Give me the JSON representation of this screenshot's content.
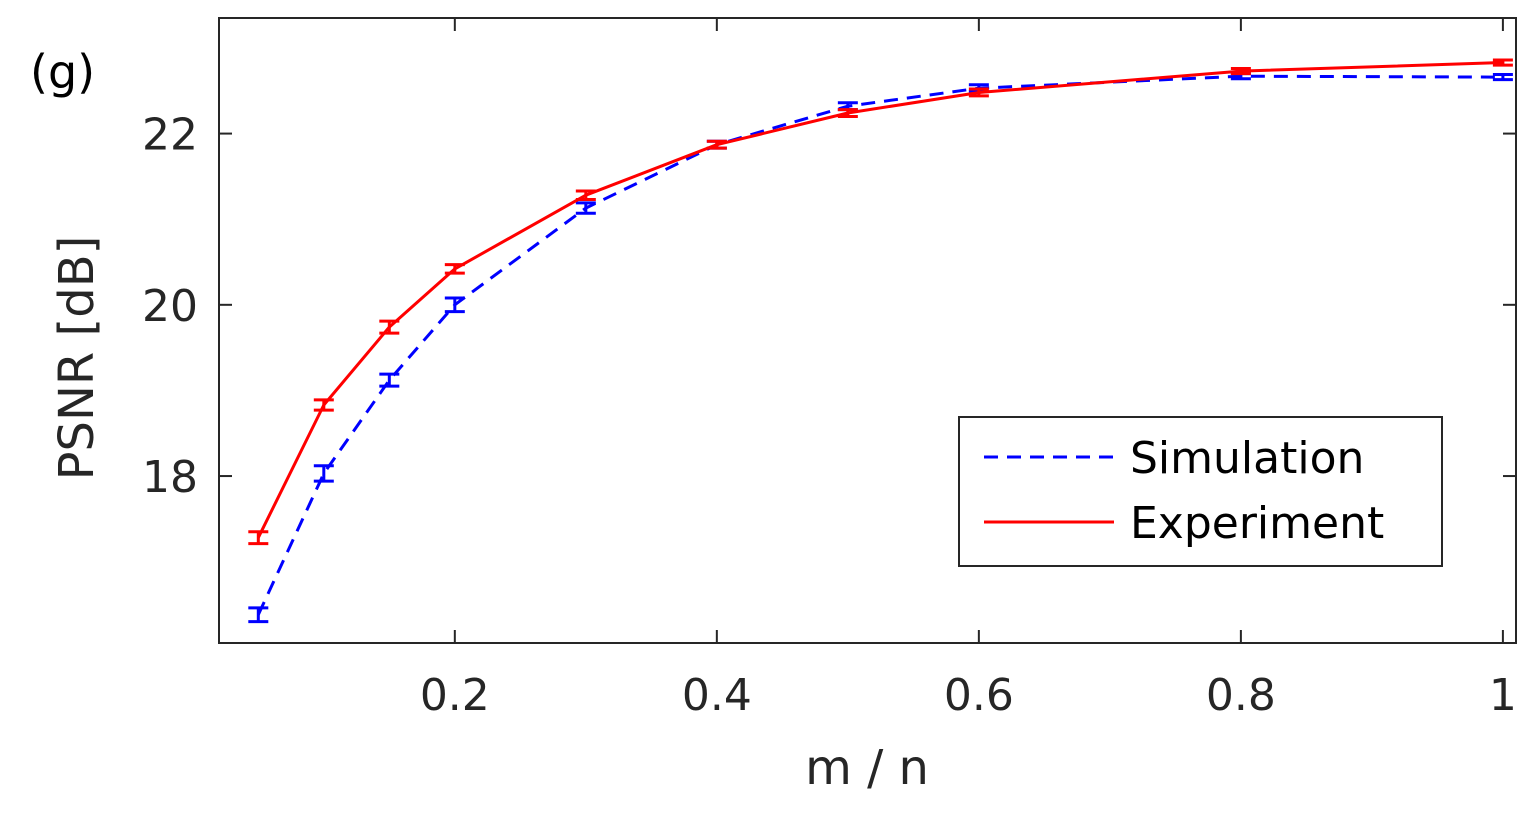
{
  "chart_data": {
    "type": "line",
    "panel_label": "(g)",
    "xlabel": "m / n",
    "ylabel": "PSNR [dB]",
    "xlim": [
      0.02,
      1.01
    ],
    "ylim": [
      16.05,
      23.35
    ],
    "xticks": [
      0.2,
      0.4,
      0.6,
      0.8,
      1
    ],
    "xtick_labels": [
      "0.2",
      "0.4",
      "0.6",
      "0.8",
      "1"
    ],
    "yticks": [
      18,
      20,
      22
    ],
    "ytick_labels": [
      "18",
      "20",
      "22"
    ],
    "legend_position": "bottom-right",
    "x": [
      0.05,
      0.1,
      0.15,
      0.2,
      0.3,
      0.4,
      0.5,
      0.6,
      0.8,
      1.0
    ],
    "series": [
      {
        "name": "Simulation",
        "color": "#0000ff",
        "style": "dashed",
        "values": [
          16.38,
          18.03,
          19.12,
          20.0,
          21.13,
          21.87,
          22.32,
          22.53,
          22.67,
          22.66
        ],
        "errors": [
          0.08,
          0.09,
          0.07,
          0.08,
          0.06,
          0.04,
          0.04,
          0.04,
          0.03,
          0.03
        ]
      },
      {
        "name": "Experiment",
        "color": "#ff0000",
        "style": "solid",
        "values": [
          17.28,
          18.83,
          19.74,
          20.42,
          21.28,
          21.87,
          22.24,
          22.48,
          22.73,
          22.83
        ],
        "errors": [
          0.07,
          0.06,
          0.07,
          0.05,
          0.05,
          0.04,
          0.04,
          0.04,
          0.03,
          0.03
        ]
      }
    ]
  }
}
